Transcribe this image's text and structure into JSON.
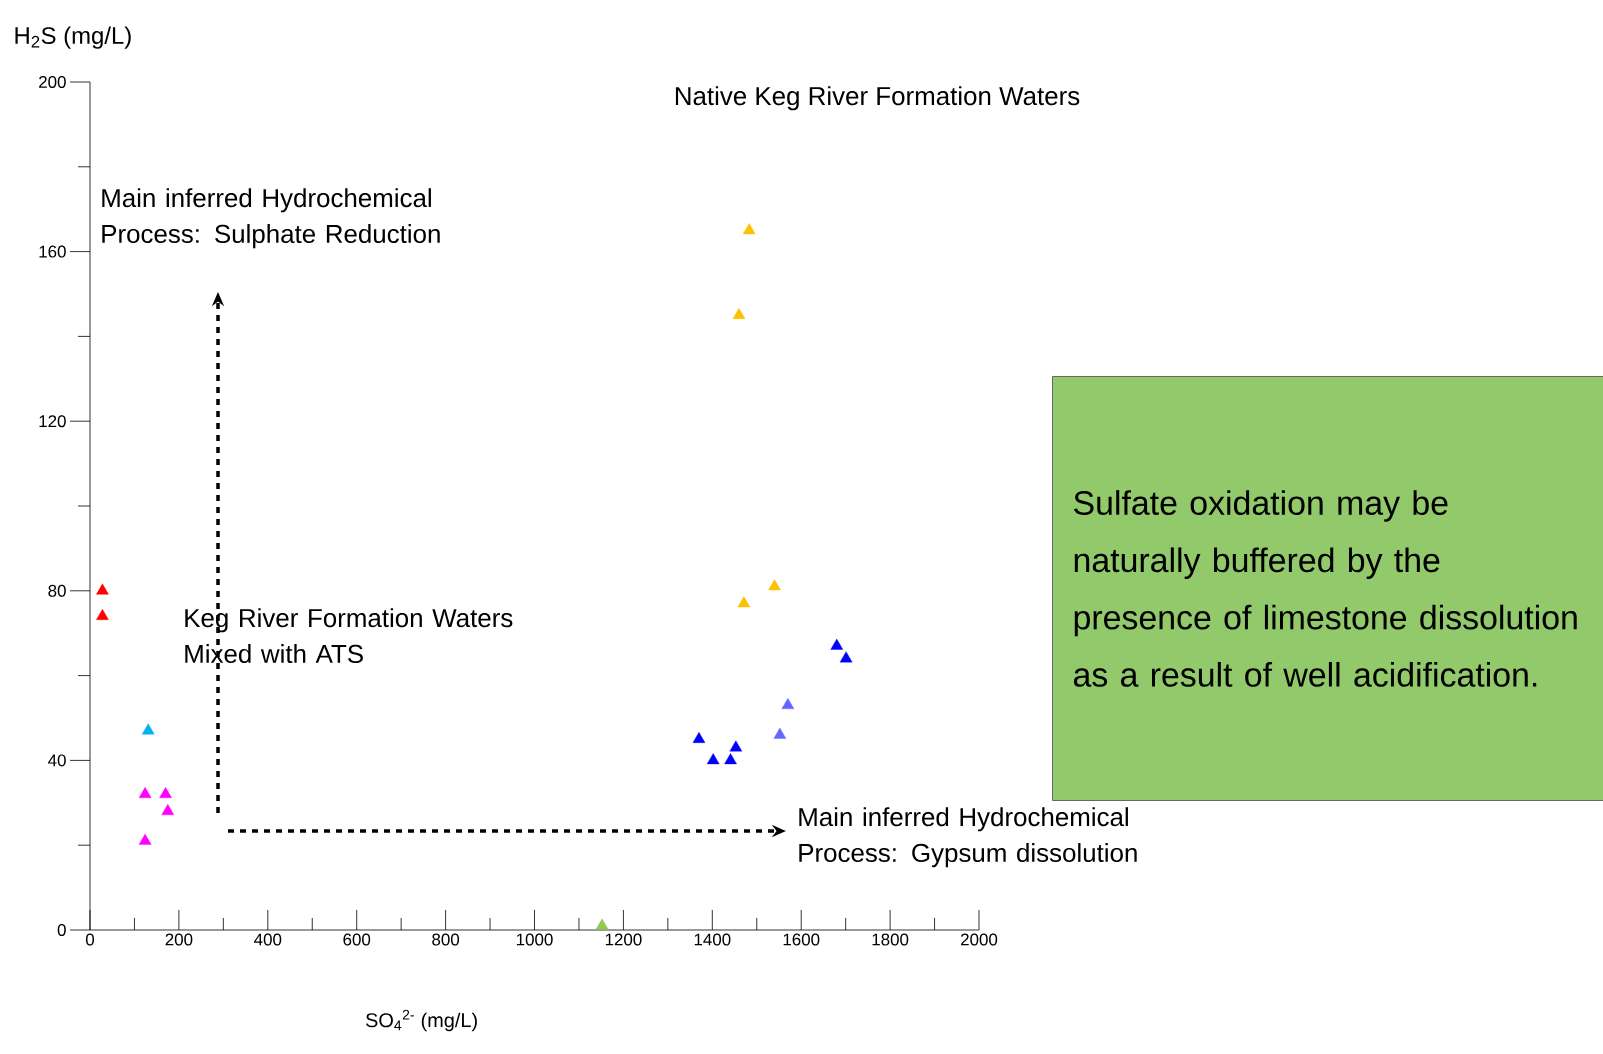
{
  "chart_data": {
    "type": "scatter",
    "xlabel": "SO$_{4}$$^{2-}$ (mg/L)",
    "ylabel": "H$_{2}$S (mg/L)",
    "xlim": [
      0,
      2000
    ],
    "ylim": [
      0,
      200
    ],
    "xticks": [
      0,
      200,
      400,
      600,
      800,
      1000,
      1200,
      1400,
      1600,
      1800,
      2000
    ],
    "yticks": [
      0,
      40,
      80,
      120,
      160,
      200
    ],
    "marker": "triangle",
    "grid": false,
    "annotations": [
      "Native Keg River Formation Waters",
      "Main inferred Hydrochemical Process: Sulphate Reduction",
      "Keg River Formation Waters Mixed with ATS",
      "Main inferred Hydrochemical Process: Gypsum dissolution",
      "Sulfate oxidation may be naturally buffered by the presence of limestone dissolution as a result of well acidification."
    ],
    "series": [
      {
        "color": "#ff0000",
        "x": [
          28,
          28
        ],
        "values": [
          80,
          74
        ]
      },
      {
        "color": "#00b0f0",
        "x": [
          131
        ],
        "values": [
          47
        ]
      },
      {
        "color": "#ff00ff",
        "x": [
          124,
          170,
          175,
          124
        ],
        "values": [
          32,
          32,
          28,
          21
        ]
      },
      {
        "color": "#92c94f",
        "x": [
          1152
        ],
        "values": [
          1
        ]
      },
      {
        "color": "#ffc000",
        "x": [
          1483,
          1460,
          1471,
          1540
        ],
        "values": [
          165,
          145,
          77,
          81
        ]
      },
      {
        "color": "#0000ff",
        "x": [
          1370,
          1402,
          1441,
          1453,
          1680,
          1701
        ],
        "values": [
          45,
          40,
          40,
          43,
          67,
          64
        ]
      },
      {
        "color": "#6666ff",
        "x": [
          1570,
          1552
        ],
        "values": [
          53,
          46
        ]
      }
    ]
  }
}
